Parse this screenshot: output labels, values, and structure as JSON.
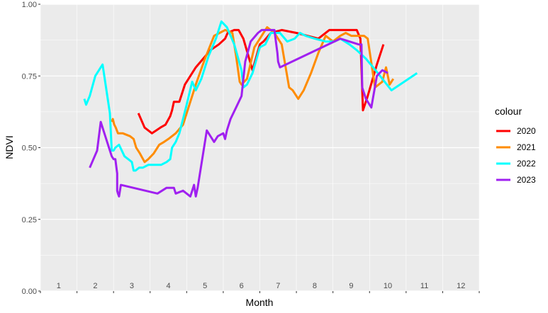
{
  "chart_data": {
    "type": "line",
    "xlabel": "Month",
    "ylabel": "NDVI",
    "xlim": [
      0.5,
      12.5
    ],
    "ylim": [
      0,
      1
    ],
    "x_ticks": [
      1,
      2,
      3,
      4,
      5,
      6,
      7,
      8,
      9,
      10,
      11,
      12
    ],
    "x_tick_labels": [
      "1",
      "2",
      "3",
      "4",
      "5",
      "6",
      "7",
      "8",
      "9",
      "10",
      "11",
      "12"
    ],
    "y_ticks": [
      0,
      0.25,
      0.5,
      0.75,
      1
    ],
    "y_tick_labels": [
      "0.00",
      "0.25",
      "0.50",
      "0.75",
      "1.00"
    ],
    "grid": true,
    "legend": {
      "title": "colour",
      "position": "right"
    },
    "series": [
      {
        "name": "2020",
        "color": "#ff0000",
        "x": [
          3.18,
          3.35,
          3.45,
          3.55,
          3.78,
          3.92,
          4.05,
          4.1,
          4.15,
          4.2,
          4.3,
          4.45,
          4.75,
          5.15,
          5.38,
          5.55,
          5.62,
          5.8,
          5.92,
          6.05,
          6.3,
          6.5,
          6.6,
          6.8,
          7.1,
          7.5,
          7.8,
          8.1,
          8.4,
          8.7,
          8.95,
          9.15,
          9.25,
          9.32,
          9.45,
          9.7,
          9.88
        ],
        "y": [
          0.62,
          0.57,
          0.56,
          0.55,
          0.57,
          0.58,
          0.61,
          0.63,
          0.66,
          0.66,
          0.66,
          0.72,
          0.78,
          0.84,
          0.86,
          0.88,
          0.9,
          0.91,
          0.91,
          0.88,
          0.77,
          0.86,
          0.87,
          0.9,
          0.91,
          0.9,
          0.89,
          0.88,
          0.91,
          0.91,
          0.91,
          0.91,
          0.88,
          0.63,
          0.68,
          0.79,
          0.86
        ]
      },
      {
        "name": "2021",
        "color": "#ff8c00",
        "x": [
          2.45,
          2.48,
          2.52,
          2.56,
          2.62,
          2.75,
          2.95,
          3.05,
          3.12,
          3.22,
          3.35,
          3.45,
          3.6,
          3.75,
          3.88,
          4.0,
          4.2,
          4.4,
          4.55,
          4.75,
          5.0,
          5.25,
          5.4,
          5.55,
          5.75,
          5.85,
          5.95,
          6.0,
          6.15,
          6.35,
          6.7,
          6.9,
          7.1,
          7.3,
          7.4,
          7.55,
          7.7,
          7.9,
          8.1,
          8.3,
          8.5,
          8.7,
          8.85,
          9.0,
          9.2,
          9.35,
          9.45,
          9.65,
          9.85,
          9.95,
          10.05,
          10.15
        ],
        "y": [
          0.59,
          0.6,
          0.58,
          0.57,
          0.55,
          0.55,
          0.54,
          0.53,
          0.5,
          0.48,
          0.45,
          0.46,
          0.48,
          0.51,
          0.52,
          0.53,
          0.55,
          0.58,
          0.64,
          0.72,
          0.81,
          0.89,
          0.9,
          0.91,
          0.9,
          0.82,
          0.73,
          0.72,
          0.74,
          0.85,
          0.92,
          0.9,
          0.86,
          0.71,
          0.7,
          0.67,
          0.7,
          0.76,
          0.83,
          0.89,
          0.87,
          0.89,
          0.9,
          0.89,
          0.89,
          0.89,
          0.88,
          0.71,
          0.73,
          0.78,
          0.72,
          0.74
        ]
      },
      {
        "name": "2022",
        "color": "#00ffff",
        "x": [
          1.7,
          1.75,
          1.85,
          2.0,
          2.2,
          2.4,
          2.45,
          2.5,
          2.55,
          2.65,
          2.8,
          2.9,
          3.0,
          3.05,
          3.1,
          3.2,
          3.3,
          3.45,
          3.6,
          3.8,
          3.95,
          4.05,
          4.1,
          4.2,
          4.3,
          4.4,
          4.5,
          4.65,
          4.75,
          4.9,
          5.1,
          5.3,
          5.45,
          5.6,
          5.8,
          6.0,
          6.05,
          6.15,
          6.3,
          6.5,
          6.65,
          6.8,
          7.05,
          7.25,
          7.45,
          7.6,
          7.75,
          8.0,
          8.3,
          8.55,
          8.7,
          8.95,
          9.15,
          9.4,
          9.6,
          10.1,
          10.8
        ],
        "y": [
          0.67,
          0.65,
          0.68,
          0.75,
          0.79,
          0.62,
          0.49,
          0.49,
          0.5,
          0.51,
          0.47,
          0.46,
          0.45,
          0.42,
          0.42,
          0.43,
          0.43,
          0.44,
          0.44,
          0.44,
          0.45,
          0.46,
          0.5,
          0.52,
          0.55,
          0.6,
          0.65,
          0.73,
          0.7,
          0.74,
          0.82,
          0.88,
          0.94,
          0.92,
          0.86,
          0.77,
          0.71,
          0.72,
          0.76,
          0.85,
          0.86,
          0.9,
          0.9,
          0.87,
          0.88,
          0.9,
          0.89,
          0.88,
          0.87,
          0.87,
          0.88,
          0.86,
          0.84,
          0.81,
          0.78,
          0.7,
          0.76
        ]
      },
      {
        "name": "2023",
        "color": "#a020f0",
        "x": [
          1.85,
          2.05,
          2.15,
          2.3,
          2.45,
          2.5,
          2.55,
          2.6,
          2.6,
          2.62,
          2.65,
          2.7,
          3.7,
          3.95,
          4.15,
          4.2,
          4.4,
          4.6,
          4.65,
          4.7,
          4.75,
          4.8,
          5.05,
          5.25,
          5.35,
          5.5,
          5.55,
          5.6,
          5.7,
          5.85,
          6.0,
          6.1,
          6.25,
          6.45,
          6.55,
          6.7,
          6.9,
          6.95,
          6.98,
          7.0,
          7.05,
          8.7,
          9.2,
          9.28,
          9.3,
          9.4,
          9.55,
          9.7,
          9.85,
          10.0
        ],
        "y": [
          0.43,
          0.49,
          0.59,
          0.53,
          0.47,
          0.46,
          0.46,
          0.41,
          0.35,
          0.34,
          0.33,
          0.37,
          0.34,
          0.36,
          0.36,
          0.34,
          0.35,
          0.33,
          0.35,
          0.37,
          0.33,
          0.36,
          0.56,
          0.52,
          0.54,
          0.55,
          0.53,
          0.56,
          0.6,
          0.64,
          0.68,
          0.8,
          0.87,
          0.9,
          0.91,
          0.91,
          0.91,
          0.86,
          0.83,
          0.8,
          0.78,
          0.88,
          0.86,
          0.86,
          0.71,
          0.67,
          0.64,
          0.75,
          0.77,
          0.76
        ]
      }
    ]
  }
}
